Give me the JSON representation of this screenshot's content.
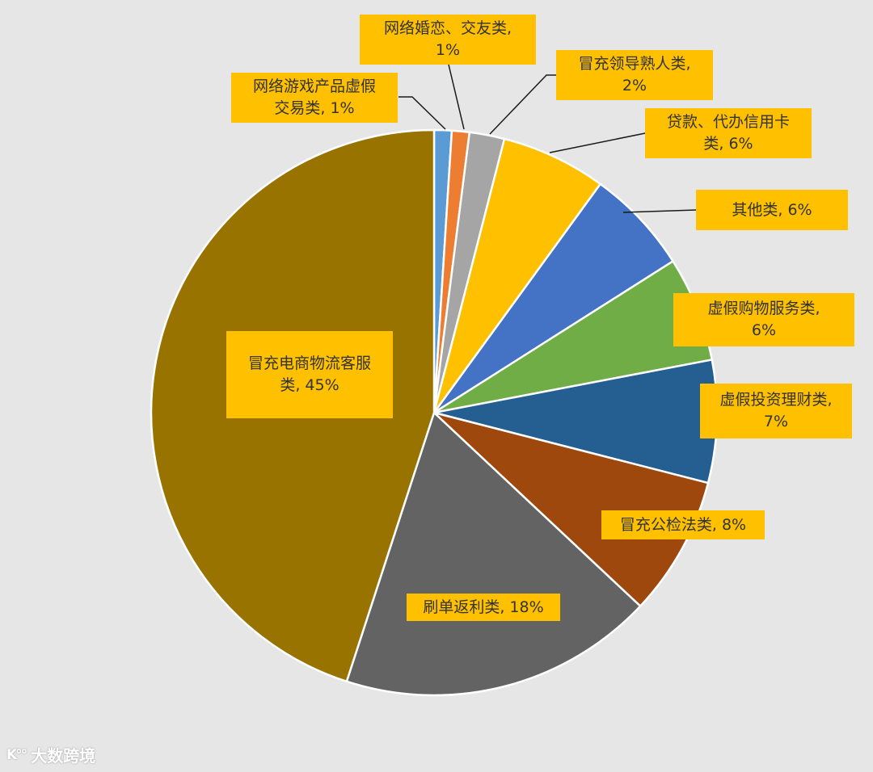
{
  "chart_data": {
    "type": "pie",
    "title": "",
    "slices": [
      {
        "label": "网络游戏产品虚假交易类",
        "value": 1,
        "pct_label": "1%",
        "color": "#5b9bd5"
      },
      {
        "label": "网络婚恋、交友类",
        "value": 1,
        "pct_label": "1%",
        "color": "#ed7d31"
      },
      {
        "label": "冒充领导熟人类",
        "value": 2,
        "pct_label": "2%",
        "color": "#a5a5a5"
      },
      {
        "label": "贷款、代办信用卡类",
        "value": 6,
        "pct_label": "6%",
        "color": "#ffc000"
      },
      {
        "label": "其他类",
        "value": 6,
        "pct_label": "6%",
        "color": "#4472c4"
      },
      {
        "label": "虚假购物服务类",
        "value": 6,
        "pct_label": "6%",
        "color": "#70ad47"
      },
      {
        "label": "虚假投资理财类",
        "value": 7,
        "pct_label": "7%",
        "color": "#255e91"
      },
      {
        "label": "冒充公检法类",
        "value": 8,
        "pct_label": "8%",
        "color": "#9e480e"
      },
      {
        "label": "刷单返利类",
        "value": 18,
        "pct_label": "18%",
        "color": "#636363"
      },
      {
        "label": "冒充电商物流客服类",
        "value": 45,
        "pct_label": "45%",
        "color": "#997300"
      }
    ],
    "data_labels": [
      {
        "line1": "网络游戏产品虚假",
        "line2": "交易类, 1%"
      },
      {
        "line1": "网络婚恋、交友类,",
        "line2": "1%"
      },
      {
        "line1": "冒充领导熟人类,",
        "line2": "2%"
      },
      {
        "line1": "贷款、代办信用卡",
        "line2": "类, 6%"
      },
      {
        "line1": "其他类, 6%",
        "line2": ""
      },
      {
        "line1": "虚假购物服务类,",
        "line2": "6%"
      },
      {
        "line1": "虚假投资理财类,",
        "line2": "7%"
      },
      {
        "line1": "冒充公检法类, 8%",
        "line2": ""
      },
      {
        "line1": "刷单返利类, 18%",
        "line2": ""
      },
      {
        "line1": "冒充电商物流客服",
        "line2": "类, 45%"
      }
    ],
    "legend": "none",
    "label_color": "#ffc000"
  },
  "watermark": {
    "logo": "K°°",
    "text": "大数跨境"
  }
}
